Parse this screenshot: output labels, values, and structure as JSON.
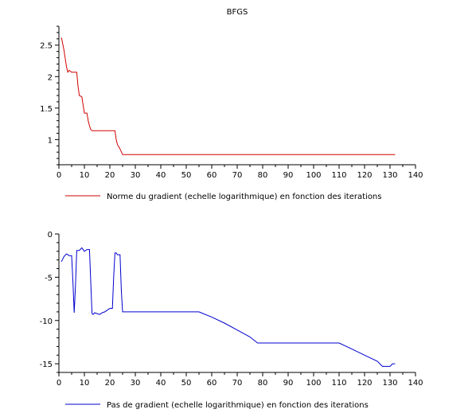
{
  "chart_data": [
    {
      "type": "line",
      "title": "BFGS",
      "xlabel": "",
      "ylabel": "",
      "xlim": [
        0,
        140
      ],
      "ylim": [
        0.6,
        2.8
      ],
      "xticks": [
        0,
        10,
        20,
        30,
        40,
        50,
        60,
        70,
        80,
        90,
        100,
        110,
        120,
        130,
        140
      ],
      "yticks": [
        1,
        1.5,
        2,
        2.5
      ],
      "ytick_labels": [
        "1",
        "1.5",
        "2",
        "2.5"
      ],
      "grid": false,
      "legend_position": "bottom-left",
      "series": [
        {
          "name": "Norme du gradient (echelle logarithmique) en fonction des iterations",
          "color": "#d00000",
          "x": [
            1,
            2,
            3,
            3.5,
            4,
            5,
            6,
            7,
            7.5,
            8,
            9,
            9.5,
            10,
            10.5,
            11,
            11.5,
            12,
            12.5,
            13,
            14,
            15,
            16,
            17,
            18,
            19,
            20,
            21,
            22,
            22.5,
            23,
            24,
            25,
            26,
            30,
            40,
            50,
            60,
            70,
            80,
            90,
            100,
            110,
            120,
            132
          ],
          "y": [
            2.62,
            2.42,
            2.15,
            2.07,
            2.1,
            2.07,
            2.07,
            2.07,
            1.85,
            1.7,
            1.68,
            1.55,
            1.42,
            1.42,
            1.42,
            1.3,
            1.22,
            1.16,
            1.14,
            1.14,
            1.14,
            1.14,
            1.14,
            1.14,
            1.14,
            1.14,
            1.14,
            1.14,
            1.0,
            0.92,
            0.85,
            0.76,
            0.76,
            0.76,
            0.76,
            0.76,
            0.76,
            0.76,
            0.76,
            0.76,
            0.76,
            0.76,
            0.76,
            0.76
          ]
        }
      ]
    },
    {
      "type": "line",
      "title": "",
      "xlabel": "",
      "ylabel": "",
      "xlim": [
        0,
        140
      ],
      "ylim": [
        -16,
        0
      ],
      "xticks": [
        0,
        10,
        20,
        30,
        40,
        50,
        60,
        70,
        80,
        90,
        100,
        110,
        120,
        130,
        140
      ],
      "yticks": [
        0,
        -5,
        -10,
        -15
      ],
      "ytick_labels": [
        "0",
        "-5",
        "-10",
        "-15"
      ],
      "grid": false,
      "legend_position": "bottom-left",
      "series": [
        {
          "name": "Pas de gradient (echelle logarithmique) en fonction des iterations",
          "color": "#0000d0",
          "x": [
            1,
            2,
            3,
            4,
            5,
            5.5,
            6,
            6.5,
            7,
            8,
            9,
            10,
            11,
            12,
            12.5,
            13,
            13.5,
            14,
            15,
            16,
            17,
            18,
            19,
            20,
            21,
            21.5,
            22,
            22.5,
            23,
            24,
            24.5,
            25,
            30,
            40,
            50,
            55,
            60,
            65,
            70,
            75,
            78,
            80,
            90,
            100,
            110,
            115,
            120,
            125,
            127,
            130,
            131,
            132
          ],
          "y": [
            -3.2,
            -2.6,
            -2.3,
            -2.5,
            -2.5,
            -5.5,
            -9.1,
            -6.0,
            -1.9,
            -1.9,
            -1.6,
            -2.0,
            -1.8,
            -1.8,
            -5.5,
            -9.2,
            -9.3,
            -9.1,
            -9.2,
            -9.3,
            -9.1,
            -9.0,
            -8.8,
            -8.6,
            -8.6,
            -5.0,
            -2.2,
            -2.2,
            -2.4,
            -2.4,
            -6.5,
            -9.0,
            -9.0,
            -9.0,
            -9.0,
            -9.0,
            -9.6,
            -10.3,
            -11.1,
            -11.9,
            -12.6,
            -12.6,
            -12.6,
            -12.6,
            -12.6,
            -13.3,
            -14.0,
            -14.7,
            -15.3,
            -15.3,
            -15.0,
            -15.0
          ]
        }
      ]
    }
  ]
}
